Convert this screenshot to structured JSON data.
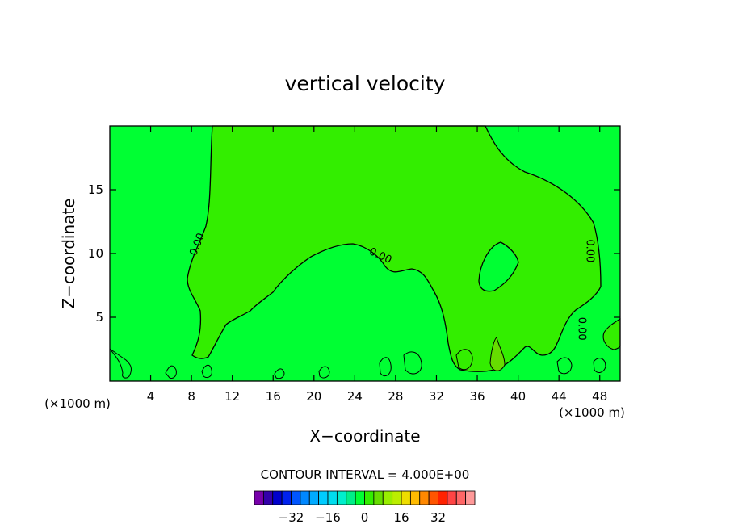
{
  "chart_data": {
    "type": "heatmap",
    "title": "vertical velocity",
    "xlabel": "X−coordinate",
    "ylabel": "Z−coordinate",
    "x_unit_left": "(×1000 m)",
    "x_unit_right": "(×1000 m)",
    "xlim": [
      0,
      50
    ],
    "ylim": [
      0,
      20
    ],
    "x_ticks": [
      4,
      8,
      12,
      16,
      20,
      24,
      28,
      32,
      36,
      40,
      44,
      48
    ],
    "y_ticks": [
      5,
      10,
      15
    ],
    "grid": false,
    "contour_interval_text": "CONTOUR INTERVAL = 4.000E+00",
    "contour_labels": [
      {
        "text": "0.00",
        "x": 8.6,
        "y": 10.7,
        "angle": -68
      },
      {
        "text": "0.00",
        "x": 26.5,
        "y": 9.8,
        "angle": 25
      },
      {
        "text": "0.00",
        "x": 47.0,
        "y": 10.2,
        "angle": 90
      },
      {
        "text": "0.00",
        "x": 46.2,
        "y": 4.1,
        "angle": 90
      }
    ],
    "field_colors": {
      "negative_weak": "#00ff33",
      "positive_weak": "#33ee00"
    },
    "colorbar": {
      "colors": [
        "#7700aa",
        "#3300aa",
        "#0000cc",
        "#0022ee",
        "#0055ff",
        "#0088ff",
        "#00aaff",
        "#00ccff",
        "#00ddee",
        "#00eecc",
        "#00ee88",
        "#00ff33",
        "#33ee00",
        "#66dd00",
        "#99ee00",
        "#bbee00",
        "#eedd00",
        "#ffbb00",
        "#ff8800",
        "#ff5500",
        "#ff2200",
        "#ff4444",
        "#ff6666",
        "#ff9999"
      ],
      "tick_labels": [
        "−32",
        "−16",
        "0",
        "16",
        "32"
      ],
      "tick_values": [
        -32,
        -16,
        0,
        16,
        32
      ],
      "range": [
        -48,
        48
      ]
    }
  }
}
